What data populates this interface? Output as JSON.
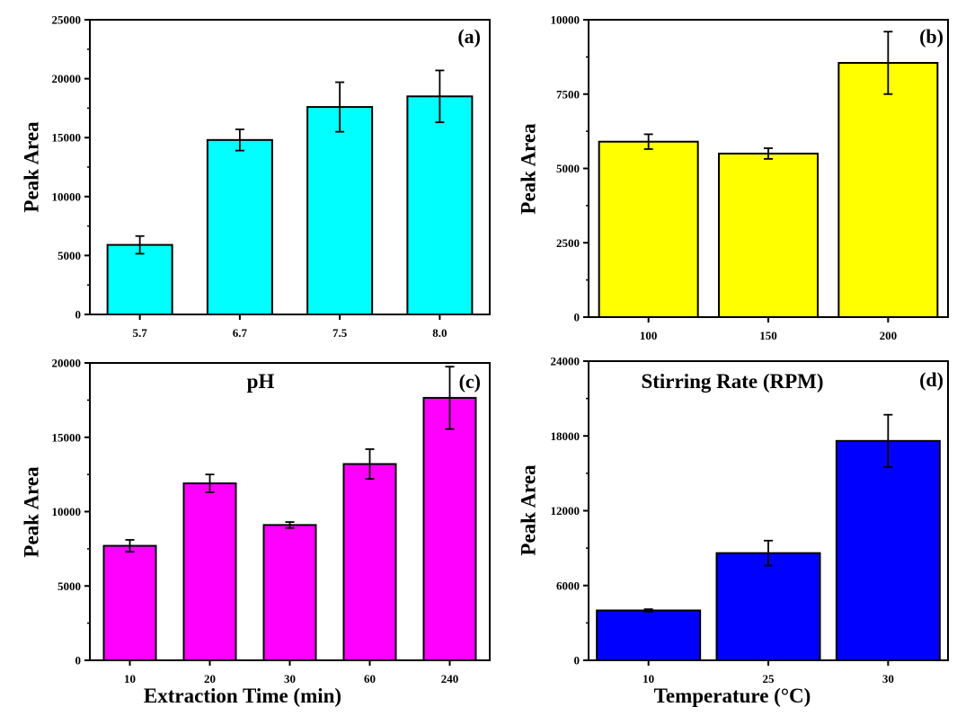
{
  "chart_data": [
    {
      "type": "bar",
      "panel_label": "(a)",
      "categories": [
        "5.7",
        "6.7",
        "7.5",
        "8.0"
      ],
      "values": [
        5900,
        14800,
        17600,
        18500
      ],
      "errors": [
        750,
        900,
        2100,
        2200
      ],
      "xlabel": "pH",
      "ylabel": "Peak Area",
      "ylim": [
        0,
        25000
      ],
      "yticks": [
        "0",
        "5000",
        "10000",
        "15000",
        "20000",
        "25000"
      ],
      "bar_color": "#00FFFF",
      "grid": false
    },
    {
      "type": "bar",
      "panel_label": "(b)",
      "categories": [
        "100",
        "150",
        "200"
      ],
      "values": [
        5900,
        5500,
        8550
      ],
      "errors": [
        250,
        180,
        1050
      ],
      "xlabel": "Stirring Rate (RPM)",
      "ylabel": "Peak Area",
      "ylim": [
        0,
        10000
      ],
      "yticks": [
        "0",
        "2500",
        "5000",
        "7500",
        "10000"
      ],
      "bar_color": "#FFFF00",
      "grid": false
    },
    {
      "type": "bar",
      "panel_label": "(c)",
      "categories": [
        "10",
        "20",
        "30",
        "60",
        "240"
      ],
      "values": [
        7700,
        11900,
        9100,
        13200,
        17650
      ],
      "errors": [
        400,
        600,
        200,
        1000,
        2100
      ],
      "xlabel": "Extraction Time (min)",
      "ylabel": "Peak Area",
      "ylim": [
        0,
        20000
      ],
      "yticks": [
        "0",
        "5000",
        "10000",
        "15000",
        "20000"
      ],
      "bar_color": "#FF00FF",
      "grid": false
    },
    {
      "type": "bar",
      "panel_label": "(d)",
      "categories": [
        "10",
        "25",
        "30"
      ],
      "values": [
        4000,
        8600,
        17600
      ],
      "errors": [
        100,
        1000,
        2100
      ],
      "xlabel": "Temperature (°C)",
      "ylabel": "Peak Area",
      "ylim": [
        0,
        24000
      ],
      "yticks": [
        "0",
        "6000",
        "12000",
        "18000",
        "24000"
      ],
      "bar_color": "#0000FF",
      "grid": false
    }
  ]
}
